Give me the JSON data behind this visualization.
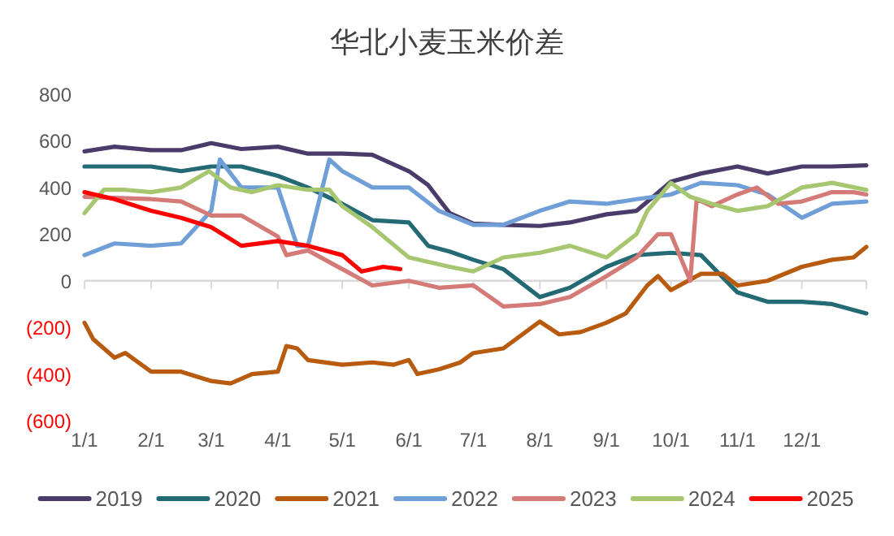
{
  "chart_data": {
    "type": "line",
    "title": "华北小麦玉米价差",
    "legend": "bottom",
    "marker": "none",
    "line_style": "solid",
    "xlim": [
      "--01-01",
      "--12-31"
    ],
    "xticks": [
      {
        "value": "--01-01",
        "label": "1/1"
      },
      {
        "value": "--02-01",
        "label": "2/1"
      },
      {
        "value": "--03-01",
        "label": "3/1"
      },
      {
        "value": "--04-01",
        "label": "4/1"
      },
      {
        "value": "--05-01",
        "label": "5/1"
      },
      {
        "value": "--06-01",
        "label": "6/1"
      },
      {
        "value": "--07-01",
        "label": "7/1"
      },
      {
        "value": "--08-01",
        "label": "8/1"
      },
      {
        "value": "--09-01",
        "label": "9/1"
      },
      {
        "value": "--10-01",
        "label": "10/1"
      },
      {
        "value": "--11-01",
        "label": "11/1"
      },
      {
        "value": "--12-01",
        "label": "12/1"
      }
    ],
    "ylim": [
      -600,
      800
    ],
    "yticks": [
      {
        "value": -600,
        "label": "(600)"
      },
      {
        "value": -400,
        "label": "(400)"
      },
      {
        "value": -200,
        "label": "(200)"
      },
      0,
      200,
      400,
      600,
      800
    ],
    "series": [
      {
        "name": "2019",
        "color": "#4b3b6b",
        "x": [
          "--01-01",
          "--01-15",
          "--02-01",
          "--02-15",
          "--03-01",
          "--03-15",
          "--04-01",
          "--04-15",
          "--05-01",
          "--05-15",
          "--06-01",
          "--06-10",
          "--06-20",
          "--07-01",
          "--07-15",
          "--08-01",
          "--08-15",
          "--09-01",
          "--09-15",
          "--10-01",
          "--10-15",
          "--11-01",
          "--11-15",
          "--12-01",
          "--12-15",
          "--12-31"
        ],
        "values": [
          555,
          575,
          560,
          560,
          590,
          565,
          575,
          545,
          545,
          540,
          470,
          410,
          290,
          245,
          240,
          235,
          250,
          285,
          300,
          425,
          460,
          490,
          460,
          490,
          490,
          495
        ]
      },
      {
        "name": "2020",
        "color": "#236a74",
        "x": [
          "--01-01",
          "--02-01",
          "--02-15",
          "--03-01",
          "--03-15",
          "--04-01",
          "--04-15",
          "--05-01",
          "--05-15",
          "--06-01",
          "--06-10",
          "--06-20",
          "--07-01",
          "--07-15",
          "--08-01",
          "--08-15",
          "--09-01",
          "--09-15",
          "--10-01",
          "--10-15",
          "--11-01",
          "--11-15",
          "--12-01",
          "--12-15",
          "--12-31"
        ],
        "values": [
          490,
          490,
          470,
          490,
          490,
          450,
          400,
          330,
          260,
          250,
          150,
          125,
          90,
          50,
          -70,
          -30,
          60,
          110,
          120,
          110,
          -50,
          -90,
          -90,
          -100,
          -140
        ]
      },
      {
        "name": "2021",
        "color": "#b85b0f",
        "x": [
          "--01-01",
          "--01-05",
          "--01-15",
          "--01-20",
          "--02-01",
          "--02-15",
          "--03-01",
          "--03-10",
          "--03-20",
          "--04-01",
          "--04-05",
          "--04-10",
          "--04-15",
          "--05-01",
          "--05-15",
          "--05-25",
          "--06-01",
          "--06-05",
          "--06-15",
          "--06-25",
          "--07-01",
          "--07-15",
          "--08-01",
          "--08-10",
          "--08-20",
          "--09-01",
          "--09-10",
          "--09-20",
          "--09-25",
          "--10-01",
          "--10-15",
          "--10-25",
          "--11-01",
          "--11-15",
          "--12-01",
          "--12-15",
          "--12-25",
          "--12-31"
        ],
        "values": [
          -180,
          -250,
          -330,
          -310,
          -390,
          -390,
          -430,
          -440,
          -400,
          -390,
          -280,
          -290,
          -340,
          -360,
          -350,
          -360,
          -340,
          -400,
          -380,
          -350,
          -310,
          -290,
          -175,
          -230,
          -220,
          -180,
          -140,
          -20,
          20,
          -40,
          30,
          30,
          -20,
          0,
          60,
          90,
          100,
          145
        ]
      },
      {
        "name": "2022",
        "color": "#6f9fd6",
        "x": [
          "--01-01",
          "--01-15",
          "--02-01",
          "--02-15",
          "--03-01",
          "--03-05",
          "--03-15",
          "--04-01",
          "--04-10",
          "--04-15",
          "--04-25",
          "--05-01",
          "--05-15",
          "--06-01",
          "--06-15",
          "--07-01",
          "--07-15",
          "--08-01",
          "--08-15",
          "--09-01",
          "--09-15",
          "--10-01",
          "--10-15",
          "--11-01",
          "--11-15",
          "--12-01",
          "--12-15",
          "--12-31"
        ],
        "values": [
          110,
          160,
          150,
          160,
          300,
          520,
          400,
          400,
          150,
          150,
          520,
          470,
          400,
          400,
          300,
          240,
          240,
          300,
          340,
          330,
          350,
          370,
          420,
          410,
          370,
          270,
          330,
          340
        ]
      },
      {
        "name": "2023",
        "color": "#d47a77",
        "x": [
          "--01-01",
          "--02-01",
          "--02-15",
          "--03-01",
          "--03-15",
          "--04-01",
          "--04-05",
          "--04-15",
          "--05-01",
          "--05-15",
          "--06-01",
          "--06-15",
          "--07-01",
          "--07-15",
          "--08-01",
          "--08-15",
          "--09-01",
          "--09-15",
          "--09-25",
          "--10-01",
          "--10-10",
          "--10-13",
          "--10-20",
          "--11-01",
          "--11-10",
          "--11-20",
          "--12-01",
          "--12-15",
          "--12-25",
          "--12-31"
        ],
        "values": [
          360,
          350,
          340,
          280,
          280,
          190,
          110,
          130,
          50,
          -20,
          0,
          -30,
          -20,
          -110,
          -100,
          -70,
          20,
          100,
          200,
          200,
          0,
          350,
          320,
          370,
          400,
          330,
          340,
          380,
          380,
          370
        ]
      },
      {
        "name": "2024",
        "color": "#a6c66f",
        "x": [
          "--01-01",
          "--01-10",
          "--01-20",
          "--02-01",
          "--02-15",
          "--02-28",
          "--03-10",
          "--03-20",
          "--04-01",
          "--04-15",
          "--04-25",
          "--05-01",
          "--05-15",
          "--06-01",
          "--06-20",
          "--07-01",
          "--07-15",
          "--08-01",
          "--08-15",
          "--09-01",
          "--09-15",
          "--09-20",
          "--10-01",
          "--10-10",
          "--10-20",
          "--11-01",
          "--11-15",
          "--12-01",
          "--12-15",
          "--12-31"
        ],
        "values": [
          290,
          390,
          390,
          380,
          400,
          470,
          400,
          380,
          410,
          390,
          390,
          320,
          230,
          100,
          60,
          40,
          100,
          120,
          150,
          100,
          200,
          300,
          420,
          360,
          330,
          300,
          320,
          400,
          420,
          390
        ]
      },
      {
        "name": "2025",
        "color": "#ff0000",
        "x": [
          "--01-01",
          "--01-15",
          "--02-01",
          "--02-15",
          "--03-01",
          "--03-15",
          "--04-01",
          "--04-15",
          "--05-01",
          "--05-10",
          "--05-20",
          "--05-28"
        ],
        "values": [
          380,
          350,
          300,
          270,
          230,
          150,
          170,
          150,
          110,
          40,
          60,
          50
        ]
      }
    ]
  }
}
